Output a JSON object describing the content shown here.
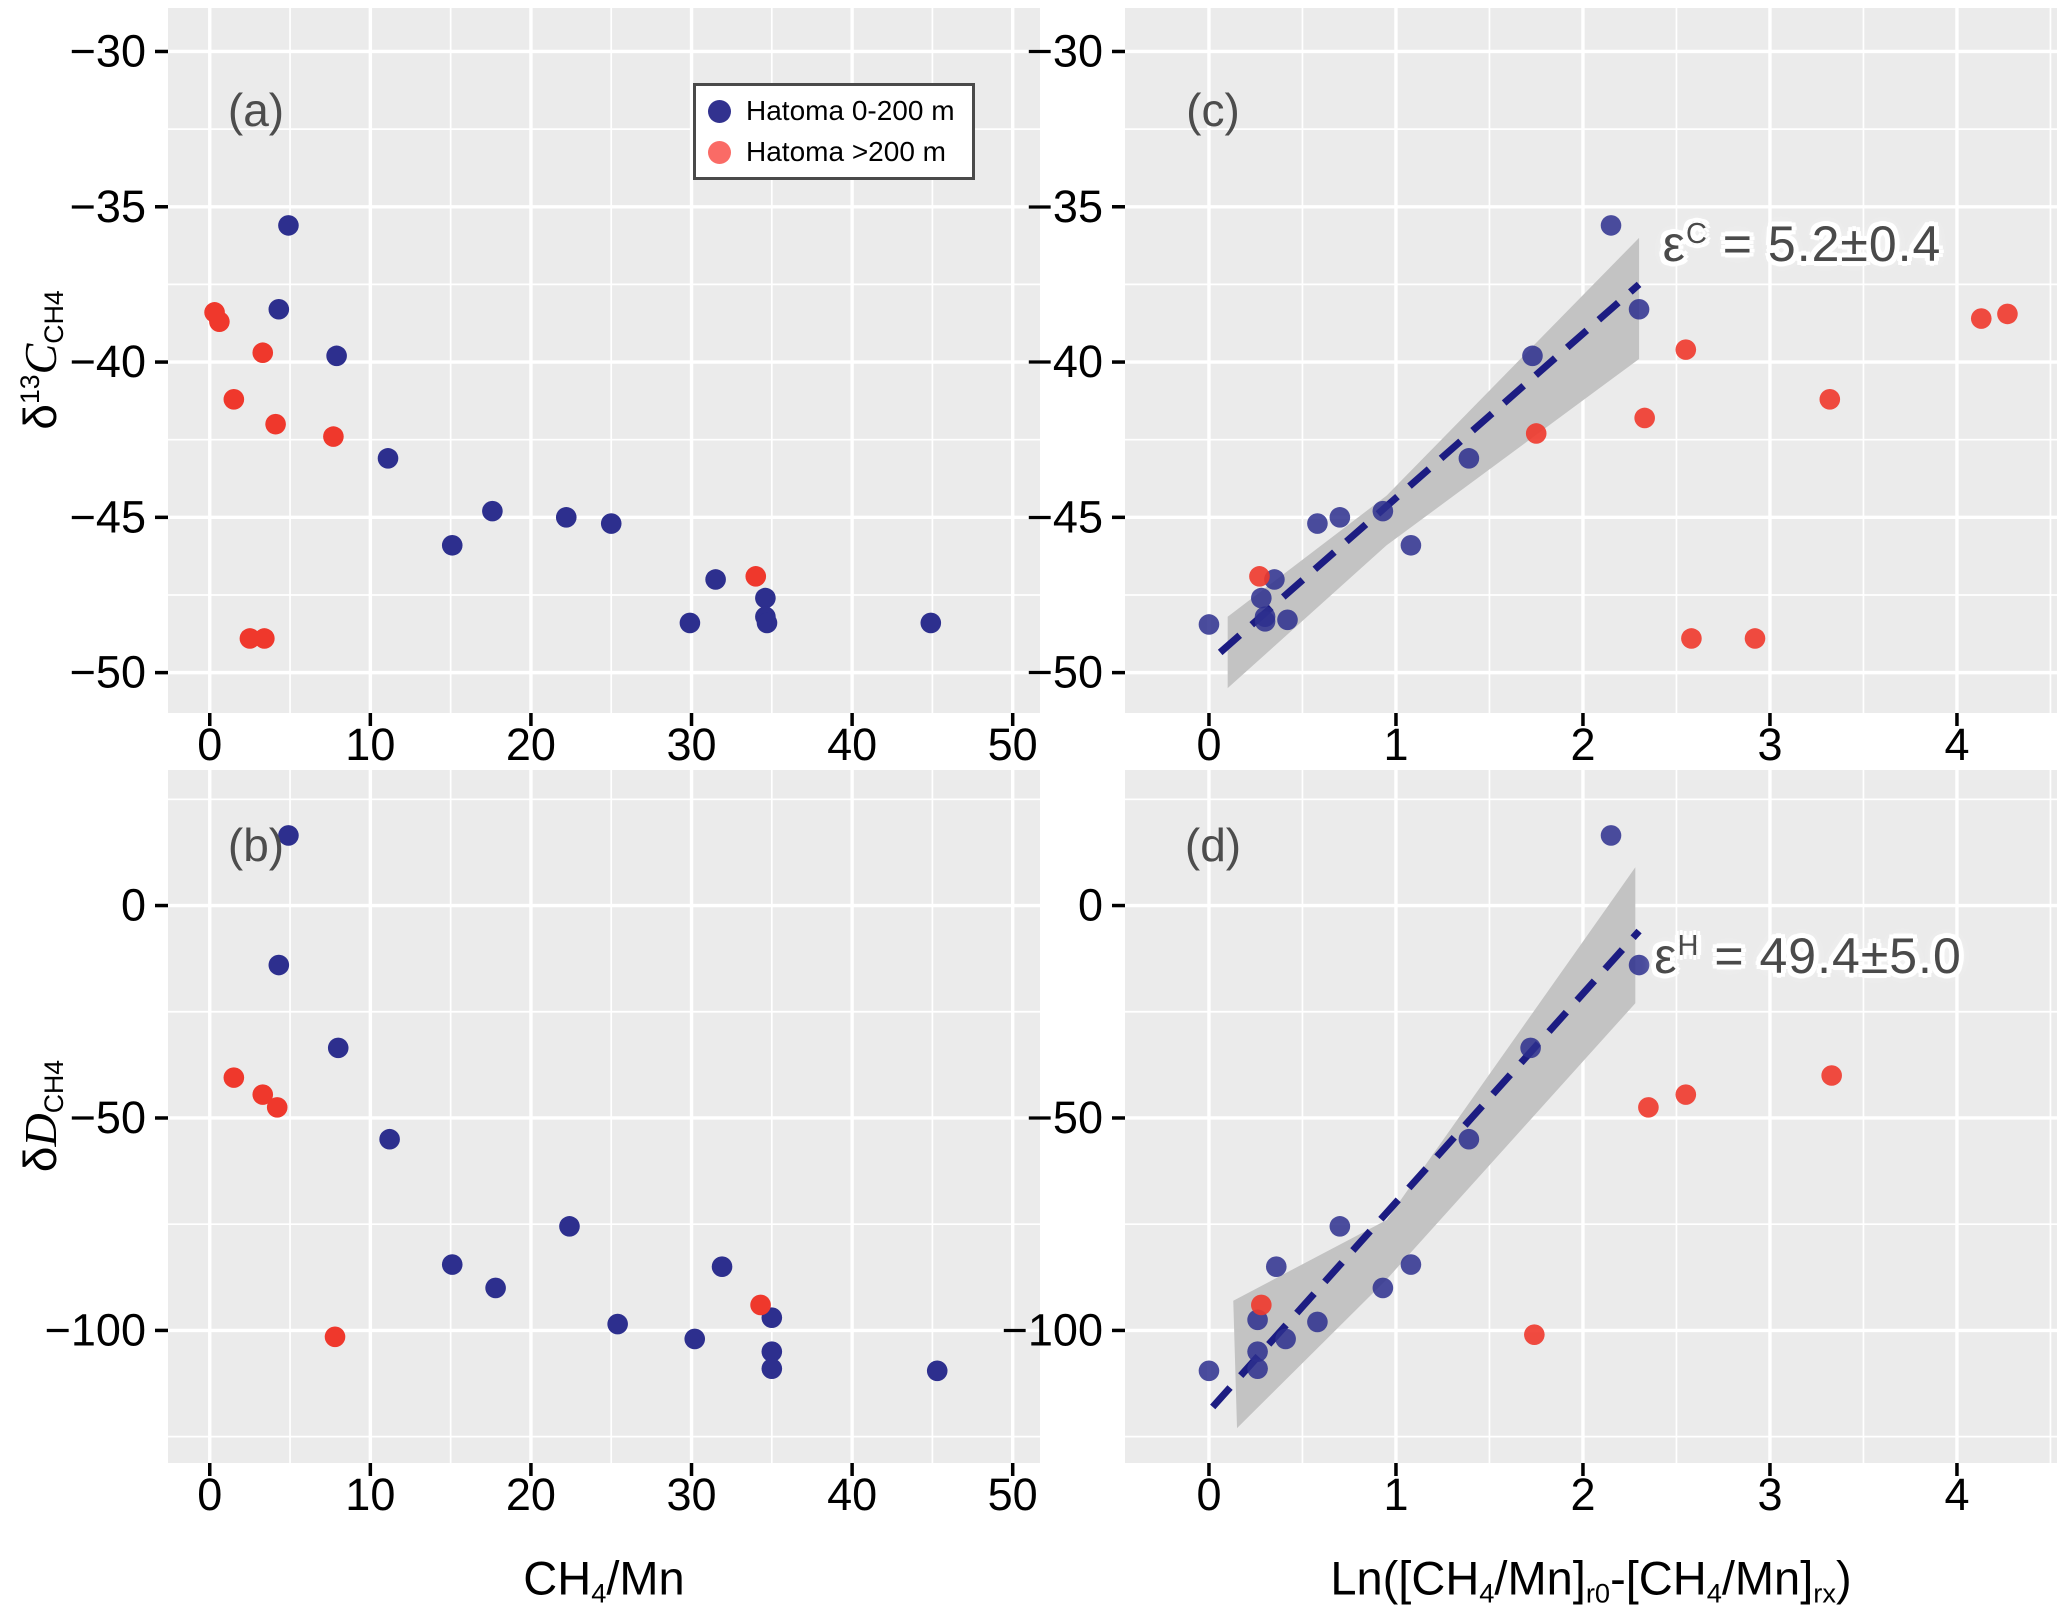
{
  "colors": {
    "panel_bg": "#EBEBEB",
    "grid": "#FFFFFF",
    "blue_point": "#2D2F8E",
    "red_point": "#EF382C",
    "legend_blue": "#32328F",
    "legend_red": "#FA6B66",
    "band": "#C3C3C3",
    "regression_line": "#1C1C82",
    "tick_text": "#000000",
    "panel_letter": "#4D4D4D",
    "annotation_text": "#4A4A4A"
  },
  "legend": {
    "items": [
      {
        "label": "Hatoma 0-200 m",
        "color": "#32328F"
      },
      {
        "label": "Hatoma >200 m",
        "color": "#FA6B66"
      }
    ]
  },
  "axis_titles": {
    "left_top_text": "δ13CCH4",
    "left_top_parts": [
      {
        "t": "δ"
      },
      {
        "t": "13",
        "sup": true
      },
      {
        "t": "C",
        "italic": true
      },
      {
        "t": "CH4",
        "sub": true
      }
    ],
    "left_bottom_text": "δDCH4",
    "left_bottom_parts": [
      {
        "t": "δ"
      },
      {
        "t": "D",
        "italic": true
      },
      {
        "t": "CH4",
        "sub": true
      }
    ],
    "bottom_left_text": "CH4/Mn",
    "bottom_left_parts": [
      {
        "t": "CH"
      },
      {
        "t": "4",
        "sub": true
      },
      {
        "t": "/Mn"
      }
    ],
    "bottom_right_text": "Ln([CH4/Mn]r0-[CH4/Mn]rx)",
    "bottom_right_parts": [
      {
        "t": "Ln(["
      },
      {
        "t": "CH"
      },
      {
        "t": "4",
        "sub": true
      },
      {
        "t": "/Mn]"
      },
      {
        "t": "r0",
        "sub": true
      },
      {
        "t": "-["
      },
      {
        "t": "CH"
      },
      {
        "t": "4",
        "sub": true
      },
      {
        "t": "/Mn]"
      },
      {
        "t": "rx",
        "sub": true
      },
      {
        "t": ")"
      }
    ]
  },
  "chart_data": [
    {
      "id": "a",
      "type": "scatter",
      "panel_label": "(a)",
      "xlabel": "CH4/Mn",
      "ylabel": "δ13CCH4",
      "xlim": [
        -2.6,
        51.7
      ],
      "ylim": [
        -51.3,
        -28.6
      ],
      "xticks": {
        "values": [
          0,
          10,
          20,
          30,
          40,
          50
        ],
        "labels": [
          "0",
          "10",
          "20",
          "30",
          "40",
          "50"
        ],
        "minor": [
          5,
          15,
          25,
          35,
          45
        ]
      },
      "yticks": {
        "values": [
          -30,
          -35,
          -40,
          -45,
          -50
        ],
        "labels": [
          "−30",
          "−35",
          "−40",
          "−45",
          "−50"
        ],
        "minor": [
          -32.5,
          -37.5,
          -42.5,
          -47.5
        ]
      },
      "series": [
        {
          "name": "Hatoma 0-200 m",
          "color": "#2D2F8E",
          "opacity": 1,
          "points": [
            [
              4.9,
              -35.6
            ],
            [
              4.3,
              -38.3
            ],
            [
              7.9,
              -39.8
            ],
            [
              11.1,
              -43.1
            ],
            [
              15.1,
              -45.9
            ],
            [
              17.6,
              -44.8
            ],
            [
              22.2,
              -45.0
            ],
            [
              25.0,
              -45.2
            ],
            [
              29.9,
              -48.4
            ],
            [
              31.5,
              -47.0
            ],
            [
              34.6,
              -47.6
            ],
            [
              34.6,
              -48.2
            ],
            [
              34.7,
              -48.4
            ],
            [
              44.9,
              -48.4
            ]
          ]
        },
        {
          "name": "Hatoma >200 m",
          "color": "#EF382C",
          "opacity": 1,
          "points": [
            [
              0.3,
              -38.4
            ],
            [
              0.6,
              -38.7
            ],
            [
              3.3,
              -39.7
            ],
            [
              1.5,
              -41.2
            ],
            [
              4.1,
              -42.0
            ],
            [
              7.7,
              -42.4
            ],
            [
              34.0,
              -46.9
            ],
            [
              2.5,
              -48.9
            ],
            [
              3.4,
              -48.9
            ]
          ]
        }
      ]
    },
    {
      "id": "b",
      "type": "scatter",
      "panel_label": "(b)",
      "xlabel": "CH4/Mn",
      "ylabel": "δDCH4",
      "xlim": [
        -2.6,
        51.7
      ],
      "ylim": [
        -131.2,
        31.9
      ],
      "xticks": {
        "values": [
          0,
          10,
          20,
          30,
          40,
          50
        ],
        "labels": [
          "0",
          "10",
          "20",
          "30",
          "40",
          "50"
        ],
        "minor": [
          5,
          15,
          25,
          35,
          45
        ]
      },
      "yticks": {
        "values": [
          0,
          -50,
          -100
        ],
        "labels": [
          "0",
          "−50",
          "−100"
        ],
        "minor": [
          25,
          -25,
          -75,
          -125
        ]
      },
      "series": [
        {
          "name": "Hatoma 0-200 m",
          "color": "#2D2F8E",
          "opacity": 1,
          "points": [
            [
              4.9,
              16.5
            ],
            [
              4.3,
              -14.0
            ],
            [
              8.0,
              -33.5
            ],
            [
              11.2,
              -55.0
            ],
            [
              15.1,
              -84.5
            ],
            [
              17.8,
              -90.0
            ],
            [
              22.4,
              -75.5
            ],
            [
              25.4,
              -98.5
            ],
            [
              30.2,
              -102.0
            ],
            [
              31.9,
              -85.0
            ],
            [
              35.0,
              -97.0
            ],
            [
              35.0,
              -105.0
            ],
            [
              35.0,
              -109.0
            ],
            [
              45.3,
              -109.5
            ]
          ]
        },
        {
          "name": "Hatoma >200 m",
          "color": "#EF382C",
          "opacity": 1,
          "points": [
            [
              1.5,
              -40.5
            ],
            [
              3.3,
              -44.5
            ],
            [
              4.2,
              -47.5
            ],
            [
              7.8,
              -101.5
            ],
            [
              34.3,
              -94.0
            ]
          ]
        }
      ]
    },
    {
      "id": "c",
      "type": "scatter",
      "panel_label": "(c)",
      "xlabel": "Ln([CH4/Mn]r0-[CH4/Mn]rx)",
      "ylabel": "δ13CCH4",
      "xlim": [
        -0.449,
        4.535
      ],
      "ylim": [
        -51.3,
        -28.6
      ],
      "xticks": {
        "values": [
          0,
          1,
          2,
          3,
          4
        ],
        "labels": [
          "0",
          "1",
          "2",
          "3",
          "4"
        ],
        "minor": [
          0.5,
          1.5,
          2.5,
          3.5,
          4.5
        ]
      },
      "yticks": {
        "values": [
          -30,
          -35,
          -40,
          -45,
          -50
        ],
        "labels": [
          "−30",
          "−35",
          "−40",
          "−45",
          "−50"
        ],
        "minor": [
          -32.5,
          -37.5,
          -42.5,
          -47.5
        ]
      },
      "annotation": "εC = 5.2±0.4",
      "annotation_parts": [
        {
          "t": "ε"
        },
        {
          "t": "C",
          "sup": true
        },
        {
          "t": " = 5.2±0.4"
        }
      ],
      "annotation_xy": [
        3.17,
        -36.2
      ],
      "regression": {
        "line": [
          [
            0.06,
            -49.35
          ],
          [
            2.3,
            -37.5
          ]
        ],
        "band": [
          [
            0.1,
            -48.2
          ],
          [
            0.95,
            -44.3
          ],
          [
            2.3,
            -36.0
          ],
          [
            2.3,
            -39.9
          ],
          [
            0.95,
            -45.9
          ],
          [
            0.1,
            -50.5
          ]
        ]
      },
      "series": [
        {
          "name": "Hatoma 0-200 m",
          "color": "#2D2F8E",
          "opacity": 0.85,
          "points": [
            [
              2.15,
              -35.6
            ],
            [
              2.3,
              -38.3
            ],
            [
              1.73,
              -39.8
            ],
            [
              1.39,
              -43.1
            ],
            [
              1.08,
              -45.9
            ],
            [
              0.93,
              -44.8
            ],
            [
              0.7,
              -45.0
            ],
            [
              0.58,
              -45.2
            ],
            [
              0.42,
              -48.3
            ],
            [
              0.35,
              -47.0
            ],
            [
              0.28,
              -47.6
            ],
            [
              0.3,
              -48.2
            ],
            [
              0.3,
              -48.35
            ],
            [
              0.0,
              -48.45
            ]
          ]
        },
        {
          "name": "Hatoma >200 m",
          "color": "#EF382C",
          "opacity": 0.9,
          "points": [
            [
              0.27,
              -46.9
            ],
            [
              1.75,
              -42.3
            ],
            [
              2.33,
              -41.8
            ],
            [
              2.55,
              -39.6
            ],
            [
              3.32,
              -41.2
            ],
            [
              4.13,
              -38.6
            ],
            [
              4.27,
              -38.45
            ],
            [
              2.58,
              -48.9
            ],
            [
              2.92,
              -48.9
            ]
          ]
        }
      ]
    },
    {
      "id": "d",
      "type": "scatter",
      "panel_label": "(d)",
      "xlabel": "Ln([CH4/Mn]r0-[CH4/Mn]rx)",
      "ylabel": "δDCH4",
      "xlim": [
        -0.449,
        4.535
      ],
      "ylim": [
        -131.2,
        31.9
      ],
      "xticks": {
        "values": [
          0,
          1,
          2,
          3,
          4
        ],
        "labels": [
          "0",
          "1",
          "2",
          "3",
          "4"
        ],
        "minor": [
          0.5,
          1.5,
          2.5,
          3.5,
          4.5
        ]
      },
      "yticks": {
        "values": [
          0,
          -50,
          -100
        ],
        "labels": [
          "0",
          "−50",
          "−100"
        ],
        "minor": [
          25,
          -25,
          -75,
          -125
        ]
      },
      "annotation": "εH = 49.4±5.0",
      "annotation_parts": [
        {
          "t": "ε"
        },
        {
          "t": "H",
          "sup": true
        },
        {
          "t": " = 49.4±5.0"
        }
      ],
      "annotation_xy": [
        3.2,
        -12.0
      ],
      "regression": {
        "line": [
          [
            0.02,
            -118.0
          ],
          [
            2.3,
            -6.0
          ]
        ],
        "band": [
          [
            0.13,
            -93.0
          ],
          [
            0.95,
            -74.0
          ],
          [
            2.28,
            9.0
          ],
          [
            2.28,
            -23.0
          ],
          [
            0.95,
            -88.0
          ],
          [
            0.15,
            -123.0
          ]
        ]
      },
      "series": [
        {
          "name": "Hatoma 0-200 m",
          "color": "#2D2F8E",
          "opacity": 0.85,
          "points": [
            [
              2.15,
              16.5
            ],
            [
              2.3,
              -14.0
            ],
            [
              1.72,
              -33.5
            ],
            [
              1.39,
              -55.0
            ],
            [
              1.08,
              -84.5
            ],
            [
              0.93,
              -90.0
            ],
            [
              0.7,
              -75.5
            ],
            [
              0.58,
              -98.0
            ],
            [
              0.41,
              -102.0
            ],
            [
              0.36,
              -85.0
            ],
            [
              0.26,
              -97.5
            ],
            [
              0.26,
              -105.0
            ],
            [
              0.26,
              -109.0
            ],
            [
              0.0,
              -109.5
            ]
          ]
        },
        {
          "name": "Hatoma >200 m",
          "color": "#EF382C",
          "opacity": 0.9,
          "points": [
            [
              0.28,
              -94.0
            ],
            [
              1.74,
              -101.0
            ],
            [
              2.35,
              -47.5
            ],
            [
              2.55,
              -44.5
            ],
            [
              3.33,
              -40.0
            ]
          ]
        }
      ]
    }
  ]
}
